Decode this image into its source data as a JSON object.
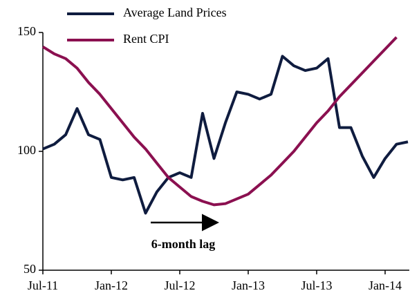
{
  "chart_data": {
    "type": "line",
    "categories": [
      "Jul-11",
      null,
      null,
      null,
      null,
      null,
      "Jan-12",
      null,
      null,
      null,
      null,
      null,
      "Jul-12",
      null,
      null,
      null,
      null,
      null,
      "Jan-13",
      null,
      null,
      null,
      null,
      null,
      "Jul-13",
      null,
      null,
      null,
      null,
      null,
      "Jan-14",
      null,
      null
    ],
    "series": [
      {
        "name": "Average Land Prices",
        "color": "#0f1c3f",
        "values": [
          101,
          103,
          107,
          118,
          107,
          105,
          89,
          88,
          89,
          74,
          83,
          89,
          91,
          89,
          116,
          97,
          112,
          125,
          124,
          122,
          124,
          140,
          136,
          134,
          135,
          139,
          110,
          110,
          98,
          89,
          97,
          103,
          104
        ]
      },
      {
        "name": "Rent CPI",
        "color": "#8b1050",
        "values": [
          144,
          141,
          139,
          135,
          129,
          124,
          118,
          112,
          106,
          101,
          95,
          89,
          85,
          81,
          79,
          77.5,
          78,
          80,
          82,
          86,
          90,
          95,
          100,
          106,
          112,
          117,
          123,
          128,
          133,
          138,
          143,
          148,
          null
        ]
      }
    ],
    "ylim": [
      50,
      150
    ],
    "yticks": [
      50,
      100,
      150
    ],
    "annotation": "6-month lag"
  }
}
